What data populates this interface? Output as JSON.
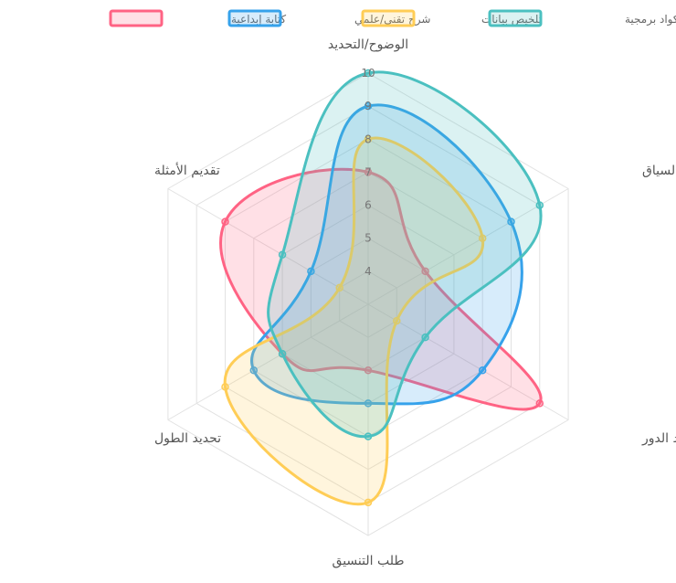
{
  "chart_data": {
    "type": "radar",
    "axes": [
      "الوضوح/التحديد",
      "تقديم السياق",
      "تحديد الدور",
      "طلب التنسيق",
      "تحديد الطول",
      "تقديم الأمثلة"
    ],
    "r_ticks": [
      4,
      5,
      6,
      7,
      8,
      9,
      10
    ],
    "r_range": [
      3,
      10
    ],
    "grid": true,
    "legend_position": "top",
    "series": [
      {
        "name": "كتابة إبداعية",
        "color": "#ff6384",
        "values": [
          7,
          5,
          9,
          5,
          6,
          8
        ]
      },
      {
        "name": "شرح تقني/علمي",
        "color": "#36a2eb",
        "values": [
          9,
          8,
          7,
          6,
          7,
          5
        ]
      },
      {
        "name": "تلخيص بيانات",
        "color": "#ffcd56",
        "values": [
          8,
          7,
          4,
          9,
          8,
          4
        ]
      },
      {
        "name": "توليد أكواد برمجية",
        "color": "#4bc0c0",
        "values": [
          10,
          9,
          5,
          7,
          6,
          6
        ]
      }
    ]
  }
}
